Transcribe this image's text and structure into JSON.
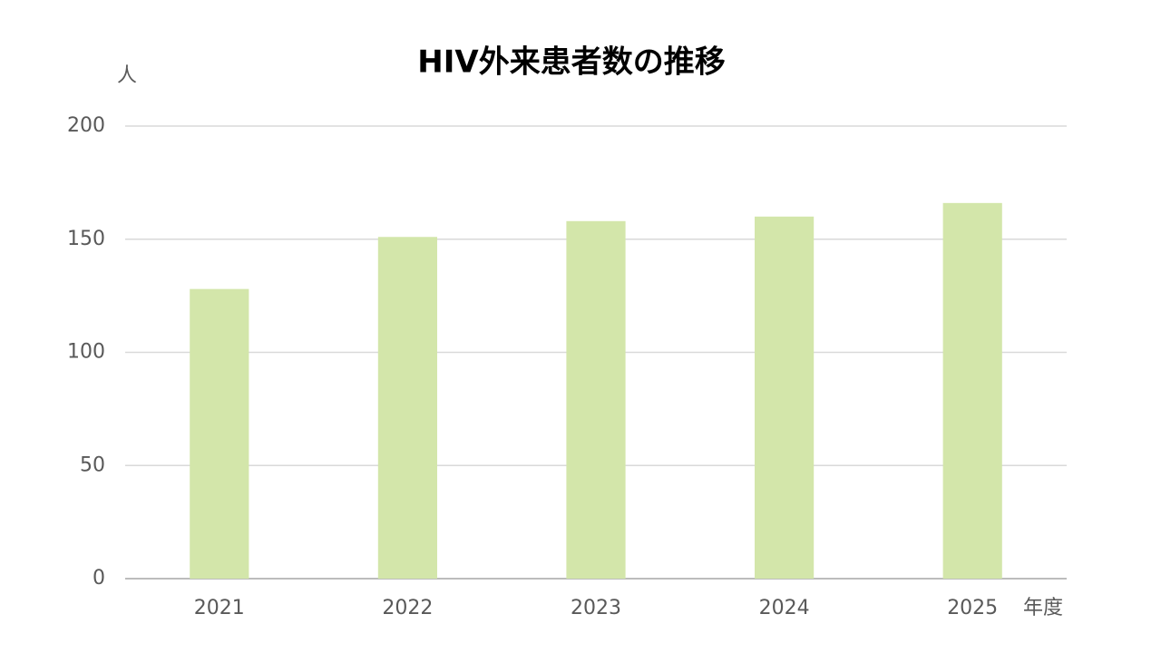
{
  "chart_data": {
    "type": "bar",
    "title": "HIV外来患者数の推移",
    "y_label": "人",
    "x_label": "年度",
    "categories": [
      "2021",
      "2022",
      "2023",
      "2024",
      "2025"
    ],
    "values": [
      128,
      151,
      158,
      160,
      166
    ],
    "color": "#d3e6aa",
    "ylim": [
      0,
      200
    ],
    "yticks": [
      0,
      50,
      100,
      150,
      200
    ],
    "grid": true
  }
}
